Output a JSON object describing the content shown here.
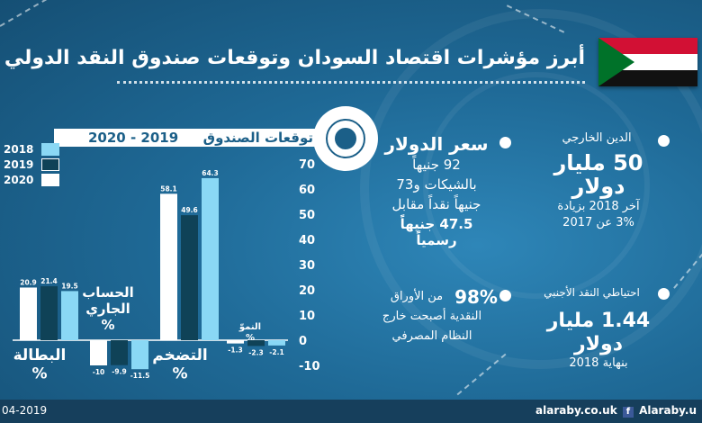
{
  "header": {
    "title": "أبرز مؤشرات اقتصاد السودان وتوقعات صندوق النقد الدولي"
  },
  "projection": {
    "label": "توقعات الصندوق",
    "years": "2020 - 2019"
  },
  "stats": {
    "external_debt": {
      "title": "الدين الخارجي",
      "value": "50 مليار",
      "unit": "دولار",
      "note_line1": "آخر 2018 بزيادة",
      "note_line2": "3% عن 2017"
    },
    "dollar_rate": {
      "title": "سعر الدولار",
      "line1": "92 جنيهاً",
      "line2": "بالشيكات و73",
      "line3": "جنيهاً نقداً مقابل",
      "line4": "47.5 جنيهاً رسمياً"
    },
    "fx_reserves": {
      "title": "احتياطي النقد الأجنبي",
      "value": "1.44 مليار",
      "unit": "دولار",
      "note": "بنهاية 2018"
    },
    "currency_outside": {
      "value": "98%",
      "line1": "من الأوراق",
      "line2": "النقدية أصبحت خارج",
      "line3": "النظام المصرفي"
    }
  },
  "footer": {
    "date": "04-2019",
    "site": "alaraby.co.uk",
    "social": "Alaraby.u"
  },
  "colors": {
    "background": "#1b5f88",
    "series_2018": "#8ad8f5",
    "series_2019": "#0f4257",
    "series_2020": "#ffffff",
    "flag_red": "#d21034",
    "flag_green": "#007229"
  },
  "chart_data": {
    "type": "bar",
    "categories": [
      "البطالة %",
      "الحساب الجاري %",
      "التضخم %",
      "النموّ %"
    ],
    "category_lines": [
      [
        "البطالة",
        "%"
      ],
      [
        "الحساب",
        "الجاري",
        "%"
      ],
      [
        "التضخم",
        "%"
      ],
      [
        "النموّ",
        "%"
      ]
    ],
    "series": [
      {
        "name": "2018",
        "values": [
          19.5,
          -11.5,
          64.3,
          -2.1
        ]
      },
      {
        "name": "2019",
        "values": [
          21.4,
          -9.9,
          49.6,
          -2.3
        ]
      },
      {
        "name": "2020",
        "values": [
          20.9,
          -10,
          58.1,
          -1.3
        ]
      }
    ],
    "value_labels": {
      "2018": [
        "19.5",
        "-11.5",
        "64.3",
        "-2.1"
      ],
      "2019": [
        "21.4",
        "-9.9",
        "49.6",
        "-2.3"
      ],
      "2020": [
        "20.9",
        "-10",
        "58.1",
        "-1.3"
      ]
    },
    "yticks": [
      "70",
      "60",
      "50",
      "40",
      "30",
      "20",
      "10",
      "0",
      "-10"
    ],
    "ytick_values": [
      70,
      60,
      50,
      40,
      30,
      20,
      10,
      0,
      -10
    ],
    "ylim": [
      -10,
      70
    ],
    "grid": false,
    "legend_placement": "left"
  }
}
